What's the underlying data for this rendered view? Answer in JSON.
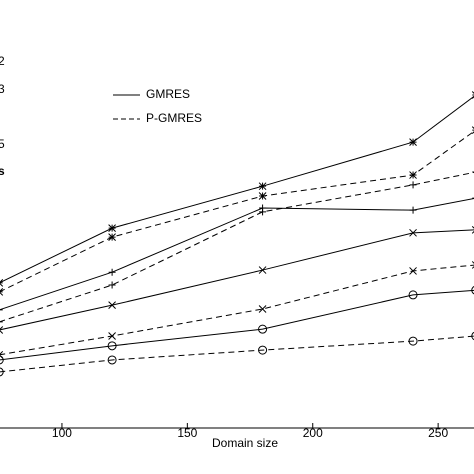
{
  "chart_data": {
    "type": "line",
    "x_label": "Domain size",
    "xlim": [
      75.3,
      264.3
    ],
    "xticks": [
      100,
      150,
      200,
      250
    ],
    "ylim": [
      0,
      100
    ],
    "x": [
      75,
      120,
      180,
      240,
      265
    ],
    "legend": [
      {
        "label": "GMRES",
        "dashed": false
      },
      {
        "label": "P-GMRES",
        "dashed": true
      }
    ],
    "side_labels": [
      "2",
      "3",
      "5",
      "s"
    ],
    "series": [
      {
        "color": "#000000",
        "marker": "star",
        "dashed": false,
        "values": [
          33.9,
          46.7,
          56.5,
          66.8,
          77.8
        ]
      },
      {
        "color": "#000000",
        "marker": "star",
        "dashed": true,
        "values": [
          31.8,
          44.6,
          54.2,
          59.1,
          69.6
        ]
      },
      {
        "color": "#000000",
        "marker": "plus",
        "dashed": false,
        "values": [
          27.6,
          36.4,
          51.4,
          50.9,
          53.7
        ]
      },
      {
        "color": "#000000",
        "marker": "plus",
        "dashed": true,
        "values": [
          24.8,
          33.4,
          50.5,
          56.8,
          59.8
        ]
      },
      {
        "color": "#000000",
        "marker": "cross",
        "dashed": false,
        "values": [
          22.9,
          28.7,
          36.9,
          45.6,
          46.3
        ]
      },
      {
        "color": "#000000",
        "marker": "cross",
        "dashed": true,
        "values": [
          17.1,
          21.5,
          27.8,
          36.7,
          38.1
        ]
      },
      {
        "color": "#000000",
        "marker": "circle",
        "dashed": false,
        "values": [
          15.9,
          19.2,
          23.1,
          31.1,
          32.2
        ]
      },
      {
        "color": "#000000",
        "marker": "circle",
        "dashed": true,
        "values": [
          13.1,
          15.9,
          18.2,
          20.3,
          21.5
        ]
      }
    ]
  }
}
